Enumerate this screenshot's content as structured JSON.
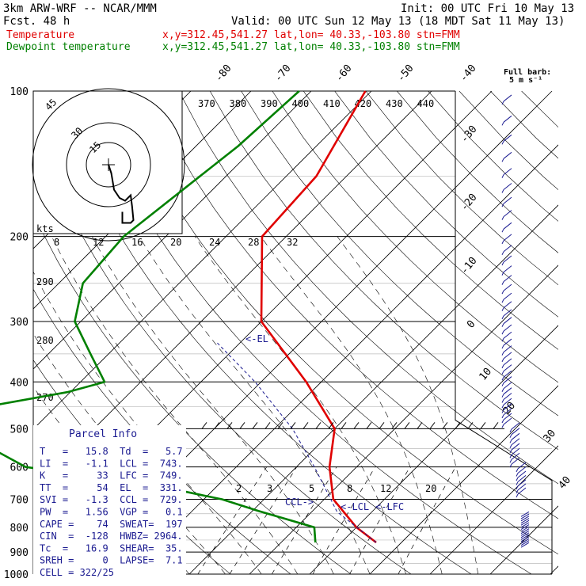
{
  "header": {
    "model": "3km ARW-WRF -- NCAR/MMM",
    "init": "Init: 00 UTC Fri 10 May 13",
    "fcst": "Fcst.   48 h",
    "valid": "Valid: 00 UTC Sun 12 May 13 (18 MDT Sat 11 May 13)",
    "temp_label": "Temperature",
    "temp_loc": "x,y=312.45,541.27   lat,lon= 40.33,-103.80  stn=FMM",
    "dew_label": "Dewpoint temperature",
    "dew_loc": "x,y=312.45,541.27   lat,lon= 40.33,-103.80  stn=FMM"
  },
  "barb_legend": {
    "line1": "Full barb:",
    "line2": "5 m s⁻¹"
  },
  "hodograph": {
    "kts_label": "kts",
    "ring_labels": [
      "15",
      "30",
      "45"
    ]
  },
  "parcel_info": {
    "title": "Parcel Info",
    "rows": [
      "T   =   15.8  Td  =   5.7",
      "LI  =   -1.1  LCL =  743.",
      "K   =     33  LFC =  749.",
      "TT  =     54  EL  =  331.",
      "SVI =   -1.3  CCL =  729.",
      "PW  =   1.56  VGP =   0.1",
      "CAPE =    74  SWEAT=  197",
      "CIN  =  -128  HWBZ= 2964.",
      "Tc  =   16.9  SHEAR=  35.",
      "SREH =     0  LAPSE=  7.1",
      "CELL = 322/25"
    ]
  },
  "annotations": {
    "el": "<-EL",
    "ccl": "CCL->",
    "lcl": "<-LCL",
    "lfc": "<-LFC"
  },
  "colors": {
    "temperature": "#e00000",
    "dewpoint": "#008000",
    "barbs": "#1a1a90",
    "grid": "#000000"
  },
  "chart_data": {
    "type": "line",
    "subtype": "skew-T log-p sounding",
    "pressure_levels": [
      100,
      200,
      300,
      400,
      500,
      600,
      700,
      800,
      900,
      1000
    ],
    "isotherm_labels": [
      -80,
      -70,
      -60,
      -50,
      -40,
      -30,
      -20,
      -10,
      0,
      10,
      20,
      30,
      40
    ],
    "theta_labels": [
      370,
      380,
      390,
      400,
      410,
      420,
      430,
      440
    ],
    "theta_side_labels": [
      290,
      280,
      270
    ],
    "mixing_ratio_labels": [
      8,
      12,
      16,
      20,
      24,
      28,
      32
    ],
    "mixing_ratio_low_labels": [
      2,
      3,
      5,
      8,
      12,
      20
    ],
    "series": [
      {
        "name": "Temperature",
        "points": [
          [
            100,
            -61
          ],
          [
            150,
            -55
          ],
          [
            200,
            -54
          ],
          [
            300,
            -40
          ],
          [
            400,
            -22.5
          ],
          [
            500,
            -10
          ],
          [
            600,
            -4.5
          ],
          [
            700,
            1.5
          ],
          [
            800,
            10
          ],
          [
            860,
            15.8
          ]
        ]
      },
      {
        "name": "Dewpoint temperature",
        "points": [
          [
            100,
            -72
          ],
          [
            130,
            -73
          ],
          [
            200,
            -77
          ],
          [
            250,
            -76
          ],
          [
            300,
            -71
          ],
          [
            350,
            -63
          ],
          [
            400,
            -56
          ],
          [
            420,
            -60.5
          ],
          [
            460,
            -75
          ],
          [
            500,
            -73
          ],
          [
            600,
            -55
          ],
          [
            650,
            -32
          ],
          [
            700,
            -17
          ],
          [
            740,
            -9
          ],
          [
            800,
            3
          ],
          [
            860,
            5.7
          ]
        ]
      }
    ],
    "hodograph_trace": [
      [
        0,
        0
      ],
      [
        1,
        -3
      ],
      [
        1.5,
        -6
      ],
      [
        2,
        -9
      ],
      [
        4,
        -12
      ],
      [
        6,
        -13
      ],
      [
        8,
        -11
      ],
      [
        8.5,
        -15
      ],
      [
        9,
        -20
      ],
      [
        8,
        -21
      ],
      [
        5,
        -21
      ],
      [
        5,
        -17
      ]
    ],
    "wind_profile_note": "wind barbs along right edge"
  }
}
